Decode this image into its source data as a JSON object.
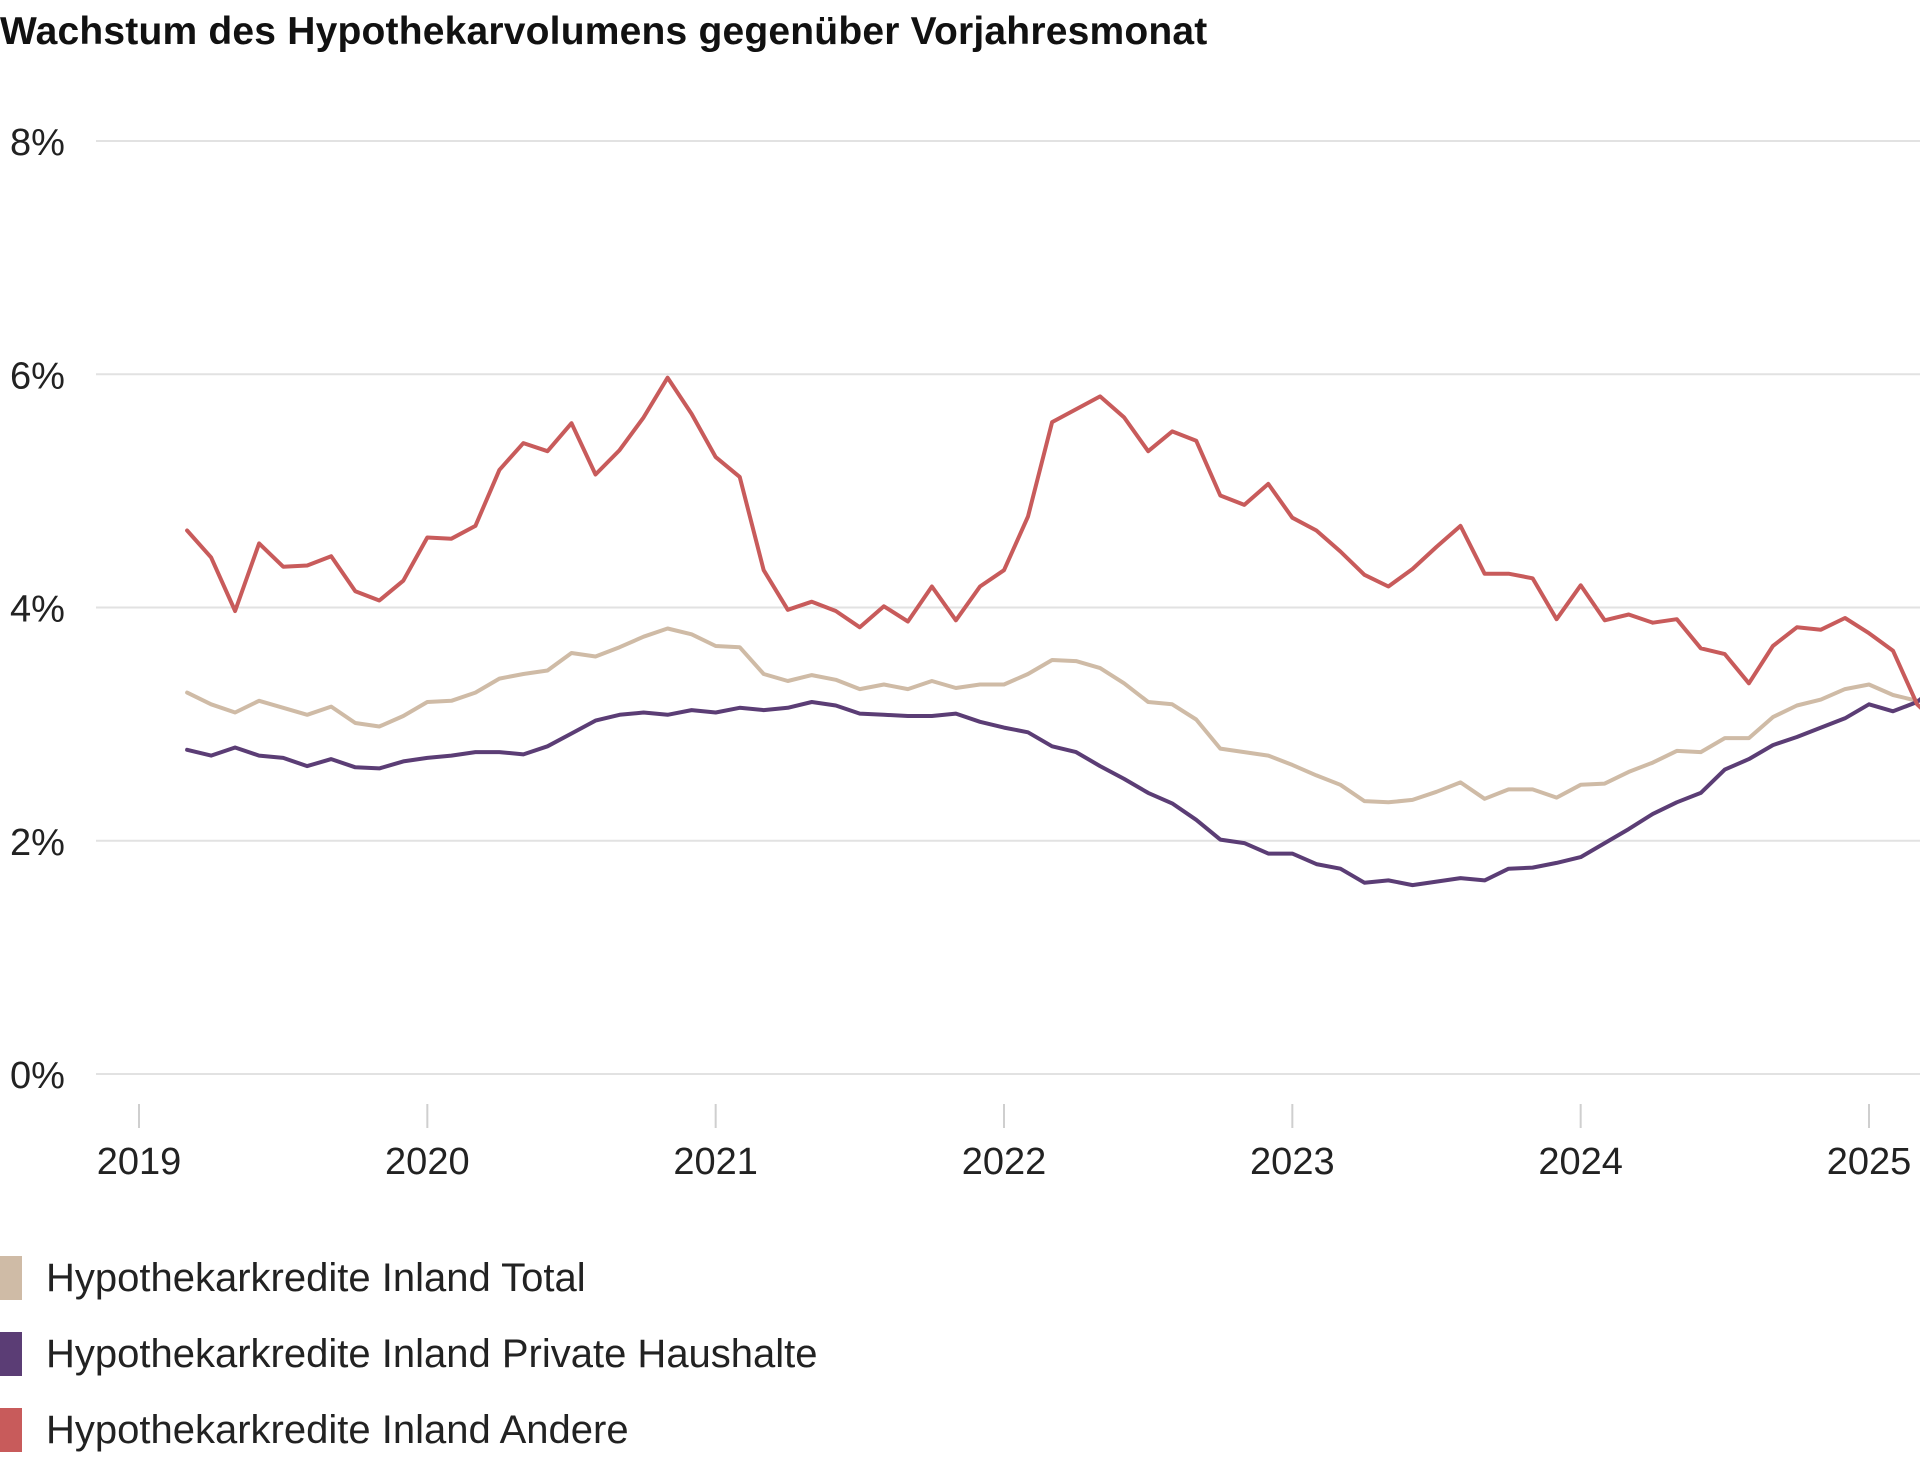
{
  "chart_data": {
    "type": "line",
    "title": "Wachstum des Hypothekarvolumens gegenüber Vorjahresmonat",
    "xlabel": "",
    "ylabel": "",
    "x_start": "2019-03",
    "x_tick_labels": [
      "2019",
      "2020",
      "2021",
      "2022",
      "2023",
      "2024",
      "2025"
    ],
    "y_tick_labels": [
      "0%",
      "2%",
      "4%",
      "6%",
      "8%"
    ],
    "ylim": [
      0,
      8
    ],
    "xlim": [
      "2019-01",
      "2025-01"
    ],
    "grid": "horizontal",
    "legend_position": "bottom-left",
    "series": [
      {
        "name": "Hypothekarkredite Inland Total",
        "color": "#cfbba6",
        "values": [
          3.27,
          3.17,
          3.1,
          3.2,
          3.14,
          3.08,
          3.15,
          3.01,
          2.98,
          3.07,
          3.19,
          3.2,
          3.27,
          3.39,
          3.43,
          3.46,
          3.61,
          3.58,
          3.66,
          3.75,
          3.82,
          3.77,
          3.67,
          3.66,
          3.43,
          3.37,
          3.42,
          3.38,
          3.3,
          3.34,
          3.3,
          3.37,
          3.31,
          3.34,
          3.34,
          3.43,
          3.55,
          3.54,
          3.48,
          3.35,
          3.19,
          3.17,
          3.04,
          2.79,
          2.76,
          2.73,
          2.65,
          2.56,
          2.48,
          2.34,
          2.33,
          2.35,
          2.42,
          2.5,
          2.36,
          2.44,
          2.44,
          2.37,
          2.48,
          2.49,
          2.59,
          2.67,
          2.77,
          2.76,
          2.88,
          2.88,
          3.06,
          3.16,
          3.21,
          3.3,
          3.34,
          3.25,
          3.2,
          3.24
        ]
      },
      {
        "name": "Hypothekarkredite Inland Private Haushalte",
        "color": "#5b3d75",
        "values": [
          2.78,
          2.73,
          2.8,
          2.73,
          2.71,
          2.64,
          2.7,
          2.63,
          2.62,
          2.68,
          2.71,
          2.73,
          2.76,
          2.76,
          2.74,
          2.81,
          2.92,
          3.03,
          3.08,
          3.1,
          3.08,
          3.12,
          3.1,
          3.14,
          3.12,
          3.14,
          3.19,
          3.16,
          3.09,
          3.08,
          3.07,
          3.07,
          3.09,
          3.02,
          2.97,
          2.93,
          2.81,
          2.76,
          2.64,
          2.53,
          2.41,
          2.32,
          2.18,
          2.01,
          1.98,
          1.89,
          1.89,
          1.8,
          1.76,
          1.64,
          1.66,
          1.62,
          1.65,
          1.68,
          1.66,
          1.76,
          1.77,
          1.81,
          1.86,
          1.98,
          2.1,
          2.23,
          2.33,
          2.41,
          2.61,
          2.7,
          2.82,
          2.89,
          2.97,
          3.05,
          3.17,
          3.11,
          3.19,
          3.36
        ]
      },
      {
        "name": "Hypothekarkredite Inland Andere",
        "color": "#c85b5b",
        "values": [
          4.66,
          4.43,
          3.97,
          4.55,
          4.35,
          4.36,
          4.44,
          4.14,
          4.06,
          4.23,
          4.6,
          4.59,
          4.7,
          5.18,
          5.41,
          5.34,
          5.58,
          5.14,
          5.35,
          5.63,
          5.97,
          5.66,
          5.29,
          5.12,
          4.32,
          3.98,
          4.05,
          3.97,
          3.83,
          4.01,
          3.88,
          4.18,
          3.89,
          4.18,
          4.32,
          4.78,
          5.59,
          5.7,
          5.81,
          5.63,
          5.34,
          5.51,
          5.43,
          4.96,
          4.88,
          5.06,
          4.77,
          4.66,
          4.48,
          4.28,
          4.18,
          4.33,
          4.52,
          4.7,
          4.29,
          4.29,
          4.25,
          3.9,
          4.19,
          3.89,
          3.94,
          3.87,
          3.9,
          3.65,
          3.6,
          3.35,
          3.67,
          3.83,
          3.81,
          3.91,
          3.78,
          3.63,
          3.17,
          2.98
        ]
      }
    ]
  }
}
